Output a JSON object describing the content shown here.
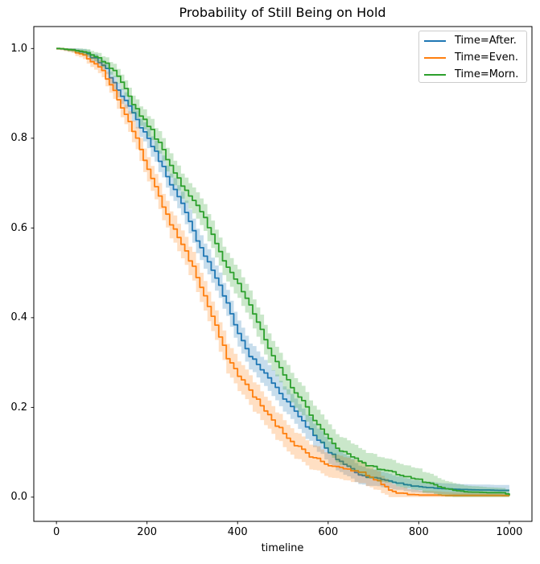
{
  "chart_data": {
    "type": "line",
    "subtype": "kaplan-meier-survival-step",
    "title": "Probability of Still Being on Hold",
    "xlabel": "timeline",
    "ylabel": "",
    "grid": false,
    "background_color": "#ffffff",
    "axis_color": "#000000",
    "band_alpha": 0.25,
    "xlim": [
      -50,
      1050
    ],
    "ylim": [
      -0.054,
      1.049
    ],
    "xticks": [
      0,
      200,
      400,
      600,
      800,
      1000
    ],
    "yticks": [
      0.0,
      0.2,
      0.4,
      0.6,
      0.8,
      1.0
    ],
    "xtick_labels": [
      "0",
      "200",
      "400",
      "600",
      "800",
      "1000"
    ],
    "ytick_labels": [
      "0.0",
      "0.2",
      "0.4",
      "0.6",
      "0.8",
      "1.0"
    ],
    "legend": {
      "position": "upper right"
    },
    "x": [
      0,
      25,
      50,
      75,
      100,
      125,
      150,
      175,
      200,
      225,
      250,
      275,
      300,
      325,
      350,
      375,
      400,
      425,
      450,
      475,
      500,
      525,
      550,
      575,
      600,
      625,
      650,
      675,
      700,
      725,
      750,
      775,
      800,
      825,
      850,
      875,
      900,
      925,
      950,
      975,
      1000
    ],
    "series": [
      {
        "name": "Time=After.",
        "slug": "after",
        "color": "#1f77b4",
        "values": [
          1.0,
          0.998,
          0.993,
          0.982,
          0.965,
          0.925,
          0.883,
          0.84,
          0.8,
          0.752,
          0.7,
          0.652,
          0.592,
          0.54,
          0.49,
          0.43,
          0.365,
          0.315,
          0.285,
          0.255,
          0.222,
          0.192,
          0.16,
          0.13,
          0.098,
          0.08,
          0.062,
          0.047,
          0.043,
          0.038,
          0.032,
          0.027,
          0.023,
          0.021,
          0.019,
          0.018,
          0.017,
          0.016,
          0.016,
          0.015,
          0.015
        ],
        "ci_hw": [
          0.002,
          0.004,
          0.006,
          0.009,
          0.012,
          0.015,
          0.018,
          0.02,
          0.022,
          0.024,
          0.025,
          0.026,
          0.027,
          0.028,
          0.028,
          0.029,
          0.029,
          0.029,
          0.029,
          0.029,
          0.028,
          0.028,
          0.027,
          0.026,
          0.025,
          0.024,
          0.022,
          0.02,
          0.018,
          0.017,
          0.015,
          0.014,
          0.013,
          0.013,
          0.012,
          0.012,
          0.012,
          0.012,
          0.012,
          0.012,
          0.012
        ]
      },
      {
        "name": "Time=Even.",
        "slug": "even",
        "color": "#ff7f0e",
        "values": [
          1.0,
          0.997,
          0.988,
          0.972,
          0.948,
          0.908,
          0.852,
          0.8,
          0.73,
          0.668,
          0.61,
          0.565,
          0.512,
          0.448,
          0.38,
          0.312,
          0.272,
          0.238,
          0.204,
          0.17,
          0.143,
          0.118,
          0.098,
          0.084,
          0.072,
          0.066,
          0.06,
          0.055,
          0.042,
          0.022,
          0.012,
          0.007,
          0.005,
          0.005,
          0.004,
          0.004,
          0.004,
          0.004,
          0.004,
          0.004,
          0.003
        ],
        "ci_hw": [
          0.003,
          0.005,
          0.008,
          0.012,
          0.015,
          0.019,
          0.022,
          0.025,
          0.027,
          0.029,
          0.03,
          0.031,
          0.032,
          0.033,
          0.033,
          0.033,
          0.033,
          0.033,
          0.032,
          0.031,
          0.03,
          0.029,
          0.028,
          0.027,
          0.026,
          0.026,
          0.025,
          0.024,
          0.022,
          0.018,
          0.015,
          0.012,
          0.01,
          0.009,
          0.008,
          0.007,
          0.007,
          0.006,
          0.006,
          0.005,
          0.005
        ]
      },
      {
        "name": "Time=Morn.",
        "slug": "morn",
        "color": "#2ca02c",
        "values": [
          1.0,
          0.998,
          0.994,
          0.985,
          0.972,
          0.948,
          0.908,
          0.864,
          0.83,
          0.788,
          0.74,
          0.697,
          0.662,
          0.62,
          0.565,
          0.512,
          0.478,
          0.43,
          0.37,
          0.312,
          0.272,
          0.235,
          0.2,
          0.16,
          0.128,
          0.105,
          0.09,
          0.078,
          0.065,
          0.06,
          0.052,
          0.045,
          0.038,
          0.028,
          0.02,
          0.015,
          0.012,
          0.011,
          0.01,
          0.01,
          0.005
        ],
        "ci_hw": [
          0.002,
          0.004,
          0.006,
          0.009,
          0.012,
          0.015,
          0.018,
          0.021,
          0.023,
          0.025,
          0.027,
          0.028,
          0.029,
          0.03,
          0.031,
          0.032,
          0.032,
          0.032,
          0.033,
          0.033,
          0.033,
          0.033,
          0.033,
          0.033,
          0.032,
          0.031,
          0.03,
          0.029,
          0.028,
          0.027,
          0.026,
          0.025,
          0.024,
          0.021,
          0.018,
          0.016,
          0.014,
          0.013,
          0.012,
          0.011,
          0.01
        ]
      }
    ]
  }
}
